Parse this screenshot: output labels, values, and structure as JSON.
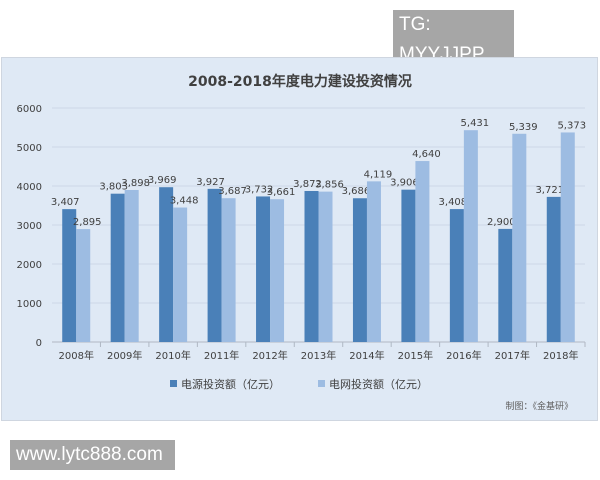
{
  "watermarks": {
    "top": "TG: MYYJJPP",
    "bottom": "www.lytc888.com"
  },
  "chart_data": {
    "type": "bar",
    "title": "2008-2018年度电力建设投资情况",
    "categories": [
      "2008年",
      "2009年",
      "2010年",
      "2011年",
      "2012年",
      "2013年",
      "2014年",
      "2015年",
      "2016年",
      "2017年",
      "2018年"
    ],
    "series": [
      {
        "name": "电源投资额（亿元）",
        "color": "#4a80b8",
        "values": [
          3407,
          3803,
          3969,
          3927,
          3732,
          3872,
          3686,
          3906,
          3408,
          2900,
          3721
        ]
      },
      {
        "name": "电网投资额（亿元）",
        "color": "#9dbce2",
        "values": [
          2895,
          3898,
          3448,
          3687,
          3661,
          3856,
          4119,
          4640,
          5431,
          5339,
          5373
        ]
      }
    ],
    "yticks": [
      "0",
      "1000",
      "2000",
      "3000",
      "4000",
      "5000",
      "6000"
    ],
    "ylim": [
      0,
      6000
    ],
    "grid": true,
    "legend": "bottom",
    "source": "制图：《金基研》"
  }
}
